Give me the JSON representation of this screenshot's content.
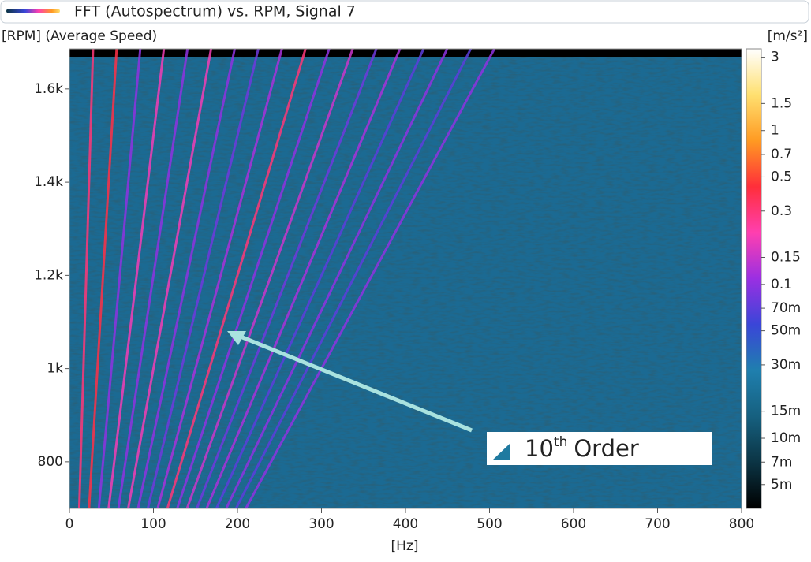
{
  "chart_data": {
    "type": "spectrogram",
    "title": "FFT (Autospectrum) vs. RPM, Signal 7",
    "y_label": "[RPM] (Average Speed)",
    "x_label": "[Hz]",
    "colorbar_label": "[m/s²]",
    "xlim": [
      0,
      800
    ],
    "xticks": [
      0,
      100,
      200,
      300,
      400,
      500,
      600,
      700,
      800
    ],
    "ylim": [
      700,
      1686
    ],
    "yticks": [
      800,
      {
        "value": 1000,
        "label": "1k"
      },
      {
        "value": 1200,
        "label": "1.2k"
      },
      {
        "value": 1400,
        "label": "1.4k"
      },
      {
        "value": 1600,
        "label": "1.6k"
      }
    ],
    "clim": [
      0.0035,
      3.4
    ],
    "color_scale": "log",
    "cticks": [
      3,
      1.5,
      1,
      0.7,
      0.5,
      0.3,
      0.15,
      0.1,
      {
        "value": 0.07,
        "label": "70m"
      },
      {
        "value": 0.05,
        "label": "50m"
      },
      {
        "value": 0.03,
        "label": "30m"
      },
      {
        "value": 0.015,
        "label": "15m"
      },
      {
        "value": 0.01,
        "label": "10m"
      },
      {
        "value": 0.007,
        "label": "7m"
      },
      {
        "value": 0.005,
        "label": "5m"
      }
    ],
    "colormap": [
      "#000000",
      "#0b3444",
      "#16607f",
      "#1f7fae",
      "#3a46d8",
      "#9a2fe2",
      "#ff3fb0",
      "#ff2e3a",
      "#ff9a22",
      "#ffe070",
      "#ffffff"
    ],
    "orders": [
      {
        "order": 1,
        "amplitude": 0.3
      },
      {
        "order": 2,
        "amplitude": 0.4
      },
      {
        "order": 3,
        "amplitude": 0.1
      },
      {
        "order": 4,
        "amplitude": 0.2
      },
      {
        "order": 5,
        "amplitude": 0.1
      },
      {
        "order": 6,
        "amplitude": 0.2
      },
      {
        "order": 7,
        "amplitude": 0.1
      },
      {
        "order": 8,
        "amplitude": 0.08
      },
      {
        "order": 9,
        "amplitude": 0.12
      },
      {
        "order": 10,
        "amplitude": 0.3
      },
      {
        "order": 11,
        "amplitude": 0.1
      },
      {
        "order": 12,
        "amplitude": 0.15
      },
      {
        "order": 13,
        "amplitude": 0.08
      },
      {
        "order": 14,
        "amplitude": 0.12
      },
      {
        "order": 15,
        "amplitude": 0.07
      },
      {
        "order": 16,
        "amplitude": 0.1
      },
      {
        "order": 17,
        "amplitude": 0.07
      },
      {
        "order": 18,
        "amplitude": 0.1
      }
    ],
    "annotation": {
      "number": "10",
      "suffix": "th",
      "text": "Order"
    }
  }
}
